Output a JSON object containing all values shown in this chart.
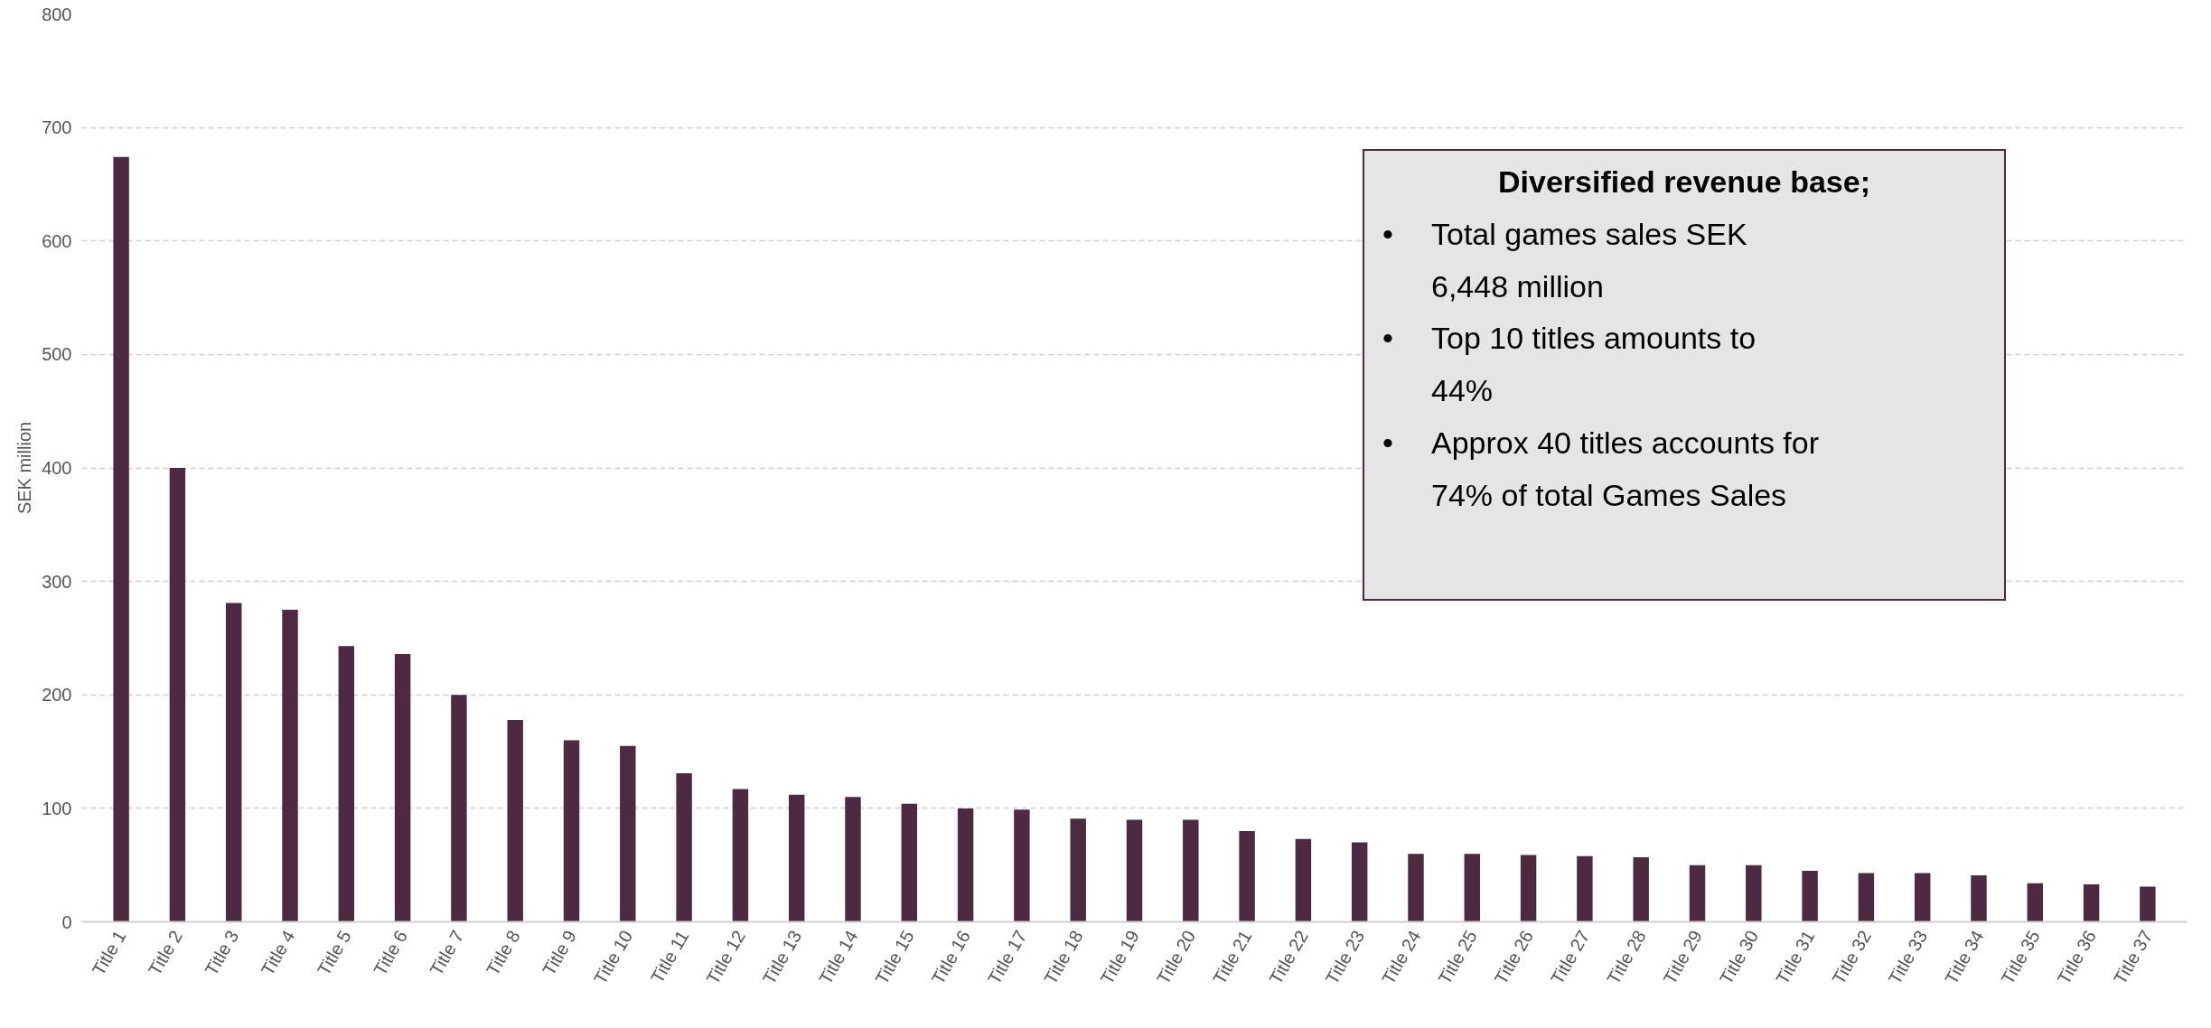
{
  "chart_data": {
    "type": "bar",
    "ylabel": "SEK million",
    "categories": [
      "Title 1",
      "Title 2",
      "Title 3",
      "Title 4",
      "Title 5",
      "Title 6",
      "Title 7",
      "Title 8",
      "Title 9",
      "Title 10",
      "Title 11",
      "Title 12",
      "Title 13",
      "Title 14",
      "Title 15",
      "Title 16",
      "Title 17",
      "Title 18",
      "Title 19",
      "Title 20",
      "Title 21",
      "Title 22",
      "Title 23",
      "Title 24",
      "Title 25",
      "Title 26",
      "Title 27",
      "Title 28",
      "Title 29",
      "Title 30",
      "Title 31",
      "Title 32",
      "Title 33",
      "Title 34",
      "Title 35",
      "Title 36",
      "Title 37"
    ],
    "values": [
      674,
      400,
      281,
      275,
      243,
      236,
      200,
      178,
      160,
      155,
      131,
      117,
      112,
      110,
      104,
      100,
      99,
      91,
      90,
      90,
      80,
      73,
      70,
      60,
      60,
      59,
      58,
      57,
      50,
      50,
      45,
      43,
      43,
      41,
      34,
      33,
      31
    ],
    "color": "#4e2a42",
    "ylim": [
      0,
      800
    ],
    "yticks": [
      0,
      100,
      200,
      300,
      400,
      500,
      600,
      700,
      800
    ],
    "grid": "y",
    "annotations": [
      "Diversified revenue base;",
      "• Total games sales SEK\n6,448 million",
      "• Top 10 titles amounts to\n44%",
      "• Approx 40 titles accounts for\n74% of total Games Sales"
    ]
  }
}
